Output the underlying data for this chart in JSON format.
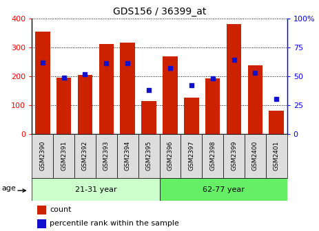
{
  "title": "GDS156 / 36399_at",
  "samples": [
    "GSM2390",
    "GSM2391",
    "GSM2392",
    "GSM2393",
    "GSM2394",
    "GSM2395",
    "GSM2396",
    "GSM2397",
    "GSM2398",
    "GSM2399",
    "GSM2400",
    "GSM2401"
  ],
  "counts": [
    355,
    195,
    205,
    312,
    317,
    115,
    268,
    127,
    193,
    380,
    237,
    80
  ],
  "percentiles": [
    62,
    49,
    52,
    61,
    61,
    38,
    57,
    42,
    48,
    64,
    53,
    30
  ],
  "groups": [
    {
      "label": "21-31 year",
      "start": 0,
      "end": 6,
      "color": "#ccffcc"
    },
    {
      "label": "62-77 year",
      "start": 6,
      "end": 12,
      "color": "#66ee66"
    }
  ],
  "ylim_left": [
    0,
    400
  ],
  "ylim_right": [
    0,
    100
  ],
  "yticks_left": [
    0,
    100,
    200,
    300,
    400
  ],
  "yticks_right": [
    0,
    25,
    50,
    75,
    100
  ],
  "bar_color": "#CC2200",
  "dot_color": "#1111CC",
  "age_label": "age",
  "legend_count": "count",
  "legend_percentile": "percentile rank within the sample"
}
